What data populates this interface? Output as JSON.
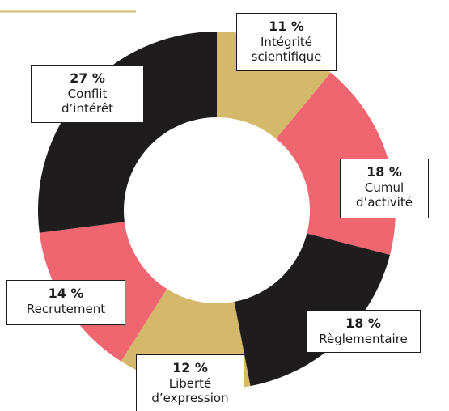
{
  "chart_data": {
    "type": "donut",
    "categories": [
      [
        "Intégrité",
        "scientifique"
      ],
      [
        "Cumul",
        "d’activité"
      ],
      [
        "Règlementaire"
      ],
      [
        "Liberté",
        "d’expression"
      ],
      [
        "Recrutement"
      ],
      [
        "Conflit",
        "d’intérêt"
      ]
    ],
    "values": [
      11,
      18,
      18,
      12,
      14,
      27
    ],
    "value_labels": [
      "11 %",
      "18 %",
      "18 %",
      "12 %",
      "14 %",
      "27 %"
    ],
    "colors": [
      "#d4b96b",
      "#ef6670",
      "#1f1c1d",
      "#d4b96b",
      "#ef6670",
      "#1f1c1d"
    ]
  }
}
